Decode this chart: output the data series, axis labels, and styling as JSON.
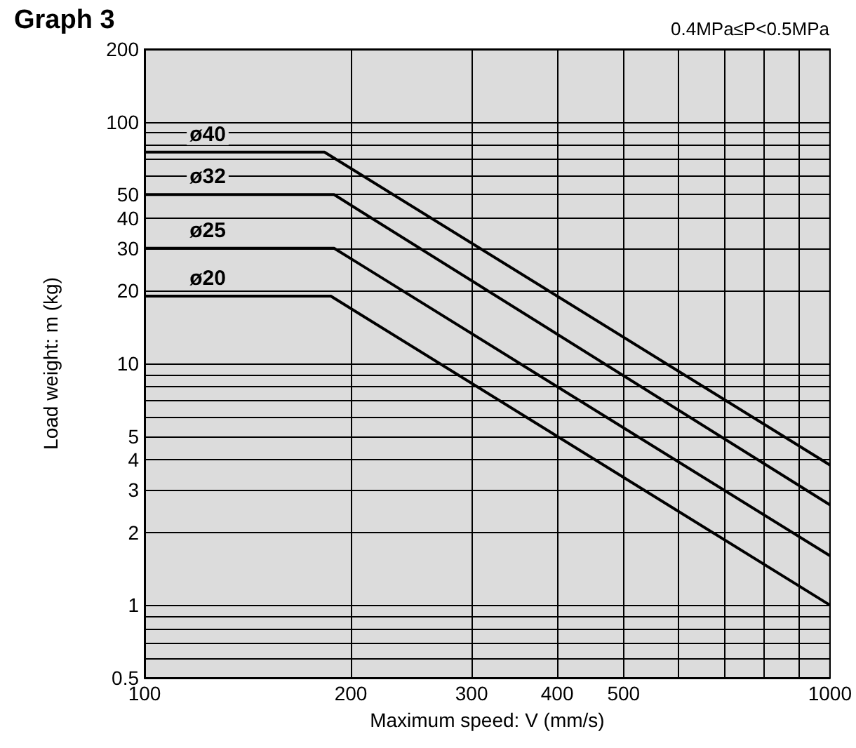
{
  "chart_data": {
    "type": "line",
    "title": "Graph 3",
    "subtitle": "0.4MPa≤P<0.5MPa",
    "xlabel": "Maximum speed: V (mm/s)",
    "ylabel": "Load weight: m (kg)",
    "log": "xy",
    "grid": true,
    "legend": false,
    "marker": "none",
    "line_style": "solid",
    "xlim": [
      100,
      1000
    ],
    "xticks": [
      100,
      200,
      300,
      400,
      500,
      {
        "value": 600,
        "label": null
      },
      {
        "value": 700,
        "label": null
      },
      {
        "value": 800,
        "label": null
      },
      {
        "value": 900,
        "label": null
      },
      1000
    ],
    "ylim": [
      0.5,
      200
    ],
    "yticks": [
      0.5,
      {
        "value": 0.6,
        "label": null
      },
      {
        "value": 0.7,
        "label": null
      },
      {
        "value": 0.8,
        "label": null
      },
      {
        "value": 0.9,
        "label": null
      },
      1,
      2,
      3,
      4,
      5,
      {
        "value": 6,
        "label": null
      },
      {
        "value": 7,
        "label": null
      },
      {
        "value": 8,
        "label": null
      },
      {
        "value": 9,
        "label": null
      },
      10,
      20,
      30,
      40,
      50,
      {
        "value": 60,
        "label": null
      },
      {
        "value": 70,
        "label": null
      },
      {
        "value": 80,
        "label": null
      },
      {
        "value": 90,
        "label": null
      },
      100,
      200
    ],
    "series": [
      {
        "name": "ø40",
        "color": "#000000",
        "x": [
          100,
          183,
          1000
        ],
        "values": [
          75,
          75,
          3.8
        ]
      },
      {
        "name": "ø32",
        "color": "#000000",
        "x": [
          100,
          189,
          1000
        ],
        "values": [
          50,
          50,
          2.6
        ]
      },
      {
        "name": "ø25",
        "color": "#000000",
        "x": [
          100,
          189,
          1000
        ],
        "values": [
          30,
          30,
          1.6
        ]
      },
      {
        "name": "ø20",
        "color": "#000000",
        "x": [
          100,
          187,
          1000
        ],
        "values": [
          19,
          19,
          1
        ]
      }
    ]
  }
}
